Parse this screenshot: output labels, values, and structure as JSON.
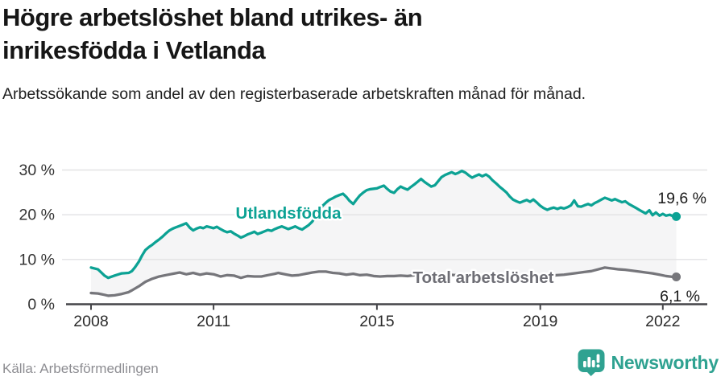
{
  "header": {
    "title_lines": [
      "Högre arbetslöshet bland utrikes- än",
      "inrikesfödda i Vetlanda"
    ],
    "subtitle": "Arbetssökande som andel av den registerbaserade arbetskraften månad för månad."
  },
  "footer": {
    "source": "Källa: Arbetsförmedlingen",
    "brand_name": "Newsworthy"
  },
  "colors": {
    "accent_teal": "#0ca294",
    "series_gray": "#76767b",
    "logo_teal": "#2fa291",
    "band_fill": "#f5f5f6",
    "gridline": "#e2e2e4",
    "axis": "#454549",
    "tick_text": "#333333",
    "end_label_text": "#1a1a1a"
  },
  "chart_data": {
    "type": "line",
    "title": "Högre arbetslöshet bland utrikes- än inrikesfödda i Vetlanda",
    "subtitle": "Arbetssökande som andel av den registerbaserade arbetskraften månad för månad.",
    "xlabel": "",
    "ylabel": "",
    "x_range": [
      2008,
      2022.33
    ],
    "y_range": [
      0,
      30
    ],
    "grid": true,
    "legend_position": "inline-labels",
    "y_ticks": [
      {
        "value": 30,
        "label": "30 %"
      },
      {
        "value": 20,
        "label": "20 %"
      },
      {
        "value": 10,
        "label": "10 %"
      },
      {
        "value": 0,
        "label": "0 %"
      }
    ],
    "x_ticks": [
      {
        "value": 2008,
        "label": "2008"
      },
      {
        "value": 2011,
        "label": "2011"
      },
      {
        "value": 2015,
        "label": "2015"
      },
      {
        "value": 2019,
        "label": "2019"
      },
      {
        "value": 2022,
        "label": "2022"
      }
    ],
    "series": [
      {
        "name": "Utlandsfödda",
        "color": "#0ca294",
        "label_color": "#0ca294",
        "end_label": "19,6 %",
        "end_value": 19.6,
        "points": [
          [
            2008.0,
            8.2
          ],
          [
            2008.17,
            7.8
          ],
          [
            2008.25,
            7.1
          ],
          [
            2008.33,
            6.4
          ],
          [
            2008.42,
            5.9
          ],
          [
            2008.58,
            6.4
          ],
          [
            2008.75,
            6.9
          ],
          [
            2008.92,
            7.0
          ],
          [
            2009.0,
            7.4
          ],
          [
            2009.08,
            8.3
          ],
          [
            2009.17,
            9.5
          ],
          [
            2009.25,
            10.9
          ],
          [
            2009.33,
            12.1
          ],
          [
            2009.42,
            12.8
          ],
          [
            2009.5,
            13.3
          ],
          [
            2009.58,
            13.9
          ],
          [
            2009.67,
            14.5
          ],
          [
            2009.75,
            15.1
          ],
          [
            2009.83,
            15.8
          ],
          [
            2009.92,
            16.5
          ],
          [
            2010.0,
            16.9
          ],
          [
            2010.08,
            17.2
          ],
          [
            2010.17,
            17.5
          ],
          [
            2010.25,
            17.8
          ],
          [
            2010.33,
            18.1
          ],
          [
            2010.42,
            17.1
          ],
          [
            2010.5,
            16.5
          ],
          [
            2010.58,
            16.9
          ],
          [
            2010.67,
            17.2
          ],
          [
            2010.75,
            17.0
          ],
          [
            2010.83,
            17.4
          ],
          [
            2010.92,
            17.2
          ],
          [
            2011.0,
            17.0
          ],
          [
            2011.08,
            17.3
          ],
          [
            2011.17,
            16.8
          ],
          [
            2011.25,
            16.4
          ],
          [
            2011.33,
            16.1
          ],
          [
            2011.42,
            16.3
          ],
          [
            2011.5,
            15.8
          ],
          [
            2011.58,
            15.4
          ],
          [
            2011.67,
            14.9
          ],
          [
            2011.75,
            15.2
          ],
          [
            2011.83,
            15.6
          ],
          [
            2011.92,
            15.9
          ],
          [
            2012.0,
            16.2
          ],
          [
            2012.08,
            15.7
          ],
          [
            2012.17,
            16.0
          ],
          [
            2012.25,
            16.3
          ],
          [
            2012.33,
            16.6
          ],
          [
            2012.42,
            16.4
          ],
          [
            2012.5,
            16.8
          ],
          [
            2012.58,
            17.1
          ],
          [
            2012.67,
            17.4
          ],
          [
            2012.75,
            17.1
          ],
          [
            2012.83,
            16.8
          ],
          [
            2012.92,
            17.1
          ],
          [
            2013.0,
            17.4
          ],
          [
            2013.08,
            17.0
          ],
          [
            2013.17,
            16.7
          ],
          [
            2013.25,
            17.2
          ],
          [
            2013.33,
            17.7
          ],
          [
            2013.42,
            18.5
          ],
          [
            2013.5,
            19.7
          ],
          [
            2013.58,
            20.9
          ],
          [
            2013.67,
            22.0
          ],
          [
            2013.75,
            22.7
          ],
          [
            2013.83,
            23.3
          ],
          [
            2013.92,
            23.7
          ],
          [
            2014.0,
            24.1
          ],
          [
            2014.08,
            24.4
          ],
          [
            2014.17,
            24.7
          ],
          [
            2014.25,
            24.0
          ],
          [
            2014.33,
            23.1
          ],
          [
            2014.42,
            22.4
          ],
          [
            2014.5,
            23.4
          ],
          [
            2014.58,
            24.3
          ],
          [
            2014.67,
            25.0
          ],
          [
            2014.75,
            25.5
          ],
          [
            2014.83,
            25.7
          ],
          [
            2015.0,
            25.9
          ],
          [
            2015.08,
            26.2
          ],
          [
            2015.17,
            26.5
          ],
          [
            2015.25,
            25.8
          ],
          [
            2015.33,
            25.2
          ],
          [
            2015.42,
            24.9
          ],
          [
            2015.5,
            25.7
          ],
          [
            2015.58,
            26.3
          ],
          [
            2015.67,
            25.9
          ],
          [
            2015.75,
            25.6
          ],
          [
            2015.83,
            26.2
          ],
          [
            2015.92,
            26.8
          ],
          [
            2016.0,
            27.4
          ],
          [
            2016.08,
            28.0
          ],
          [
            2016.17,
            27.3
          ],
          [
            2016.25,
            26.8
          ],
          [
            2016.33,
            26.3
          ],
          [
            2016.42,
            26.6
          ],
          [
            2016.5,
            27.5
          ],
          [
            2016.58,
            28.4
          ],
          [
            2016.67,
            28.9
          ],
          [
            2016.75,
            29.2
          ],
          [
            2016.83,
            29.5
          ],
          [
            2016.92,
            29.1
          ],
          [
            2017.0,
            29.4
          ],
          [
            2017.08,
            29.8
          ],
          [
            2017.17,
            29.4
          ],
          [
            2017.25,
            28.8
          ],
          [
            2017.33,
            28.3
          ],
          [
            2017.42,
            28.7
          ],
          [
            2017.5,
            29.0
          ],
          [
            2017.58,
            28.6
          ],
          [
            2017.67,
            29.0
          ],
          [
            2017.75,
            28.5
          ],
          [
            2017.83,
            27.7
          ],
          [
            2017.92,
            27.0
          ],
          [
            2018.0,
            26.3
          ],
          [
            2018.08,
            25.7
          ],
          [
            2018.17,
            25.0
          ],
          [
            2018.25,
            24.1
          ],
          [
            2018.33,
            23.4
          ],
          [
            2018.42,
            23.0
          ],
          [
            2018.5,
            22.7
          ],
          [
            2018.58,
            23.0
          ],
          [
            2018.67,
            23.3
          ],
          [
            2018.75,
            22.9
          ],
          [
            2018.83,
            23.4
          ],
          [
            2018.92,
            22.7
          ],
          [
            2019.0,
            22.0
          ],
          [
            2019.08,
            21.5
          ],
          [
            2019.17,
            21.1
          ],
          [
            2019.25,
            21.4
          ],
          [
            2019.33,
            21.6
          ],
          [
            2019.42,
            21.3
          ],
          [
            2019.5,
            21.6
          ],
          [
            2019.58,
            21.4
          ],
          [
            2019.67,
            21.7
          ],
          [
            2019.75,
            22.1
          ],
          [
            2019.83,
            23.2
          ],
          [
            2019.92,
            21.9
          ],
          [
            2020.0,
            21.8
          ],
          [
            2020.08,
            22.1
          ],
          [
            2020.17,
            22.4
          ],
          [
            2020.25,
            22.1
          ],
          [
            2020.33,
            22.6
          ],
          [
            2020.42,
            23.0
          ],
          [
            2020.5,
            23.4
          ],
          [
            2020.58,
            23.8
          ],
          [
            2020.67,
            23.5
          ],
          [
            2020.75,
            23.2
          ],
          [
            2020.83,
            23.5
          ],
          [
            2020.92,
            23.1
          ],
          [
            2021.0,
            22.8
          ],
          [
            2021.08,
            23.0
          ],
          [
            2021.17,
            22.4
          ],
          [
            2021.25,
            22.0
          ],
          [
            2021.33,
            21.6
          ],
          [
            2021.42,
            21.1
          ],
          [
            2021.5,
            20.7
          ],
          [
            2021.58,
            20.3
          ],
          [
            2021.67,
            21.0
          ],
          [
            2021.75,
            19.9
          ],
          [
            2021.83,
            20.5
          ],
          [
            2021.92,
            19.8
          ],
          [
            2022.0,
            20.2
          ],
          [
            2022.08,
            19.8
          ],
          [
            2022.17,
            20.0
          ],
          [
            2022.25,
            19.7
          ],
          [
            2022.33,
            19.6
          ]
        ]
      },
      {
        "name": "Total arbetslöshet",
        "color": "#76767b",
        "label_color": "#6e6e75",
        "end_label": "6,1 %",
        "end_value": 6.1,
        "points": [
          [
            2008.0,
            2.5
          ],
          [
            2008.17,
            2.4
          ],
          [
            2008.33,
            2.1
          ],
          [
            2008.42,
            1.9
          ],
          [
            2008.58,
            2.0
          ],
          [
            2008.75,
            2.3
          ],
          [
            2008.92,
            2.7
          ],
          [
            2009.0,
            3.1
          ],
          [
            2009.17,
            4.0
          ],
          [
            2009.33,
            5.0
          ],
          [
            2009.5,
            5.7
          ],
          [
            2009.67,
            6.2
          ],
          [
            2009.83,
            6.5
          ],
          [
            2010.0,
            6.8
          ],
          [
            2010.17,
            7.1
          ],
          [
            2010.33,
            6.7
          ],
          [
            2010.5,
            7.0
          ],
          [
            2010.67,
            6.6
          ],
          [
            2010.83,
            6.9
          ],
          [
            2011.0,
            6.7
          ],
          [
            2011.17,
            6.2
          ],
          [
            2011.33,
            6.5
          ],
          [
            2011.5,
            6.4
          ],
          [
            2011.67,
            5.9
          ],
          [
            2011.83,
            6.3
          ],
          [
            2012.0,
            6.2
          ],
          [
            2012.17,
            6.2
          ],
          [
            2012.33,
            6.5
          ],
          [
            2012.5,
            6.8
          ],
          [
            2012.58,
            7.0
          ],
          [
            2012.75,
            6.7
          ],
          [
            2012.92,
            6.4
          ],
          [
            2013.08,
            6.5
          ],
          [
            2013.25,
            6.8
          ],
          [
            2013.42,
            7.1
          ],
          [
            2013.58,
            7.3
          ],
          [
            2013.75,
            7.3
          ],
          [
            2013.92,
            7.0
          ],
          [
            2014.08,
            6.9
          ],
          [
            2014.25,
            6.6
          ],
          [
            2014.42,
            6.8
          ],
          [
            2014.58,
            6.5
          ],
          [
            2014.75,
            6.6
          ],
          [
            2014.92,
            6.3
          ],
          [
            2015.08,
            6.2
          ],
          [
            2015.25,
            6.3
          ],
          [
            2015.42,
            6.3
          ],
          [
            2015.58,
            6.4
          ],
          [
            2015.75,
            6.3
          ],
          [
            2015.92,
            6.5
          ],
          [
            2016.08,
            6.6
          ],
          [
            2016.25,
            6.5
          ],
          [
            2016.42,
            6.4
          ],
          [
            2016.58,
            6.5
          ],
          [
            2016.75,
            6.6
          ],
          [
            2016.92,
            6.5
          ],
          [
            2017.08,
            6.6
          ],
          [
            2017.25,
            6.5
          ],
          [
            2017.42,
            6.4
          ],
          [
            2017.58,
            6.3
          ],
          [
            2017.75,
            6.2
          ],
          [
            2017.92,
            6.1
          ],
          [
            2018.08,
            6.0
          ],
          [
            2018.25,
            6.1
          ],
          [
            2018.42,
            6.0
          ],
          [
            2018.58,
            5.9
          ],
          [
            2018.75,
            6.1
          ],
          [
            2018.92,
            6.2
          ],
          [
            2019.08,
            6.3
          ],
          [
            2019.25,
            6.4
          ],
          [
            2019.42,
            6.5
          ],
          [
            2019.58,
            6.6
          ],
          [
            2019.75,
            6.8
          ],
          [
            2019.92,
            7.0
          ],
          [
            2020.08,
            7.2
          ],
          [
            2020.25,
            7.4
          ],
          [
            2020.42,
            7.8
          ],
          [
            2020.58,
            8.2
          ],
          [
            2020.75,
            8.0
          ],
          [
            2020.92,
            7.8
          ],
          [
            2021.08,
            7.7
          ],
          [
            2021.25,
            7.5
          ],
          [
            2021.42,
            7.3
          ],
          [
            2021.58,
            7.1
          ],
          [
            2021.75,
            6.9
          ],
          [
            2021.92,
            6.6
          ],
          [
            2022.08,
            6.3
          ],
          [
            2022.25,
            6.1
          ],
          [
            2022.33,
            6.1
          ]
        ]
      }
    ]
  }
}
